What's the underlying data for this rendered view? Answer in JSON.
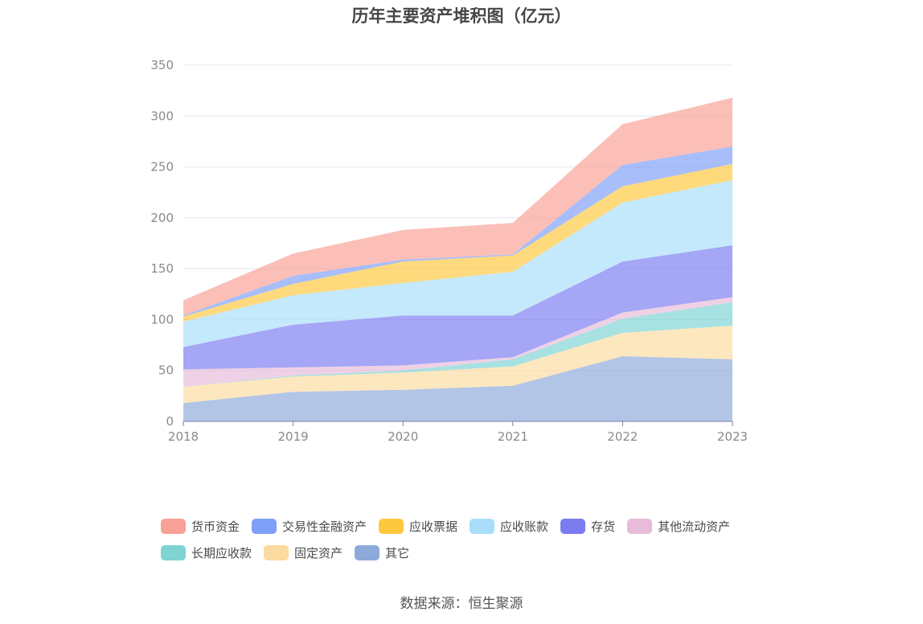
{
  "chart_data": {
    "type": "area",
    "stacked": true,
    "title": "历年主要资产堆积图（亿元）",
    "x": [
      "2018",
      "2019",
      "2020",
      "2021",
      "2022",
      "2023"
    ],
    "ylim": [
      0,
      350
    ],
    "yticks": [
      0,
      50,
      100,
      150,
      200,
      250,
      300,
      350
    ],
    "grid": true,
    "legend_position": "bottom",
    "series": [
      {
        "name": "其它",
        "color": "#8eaadb",
        "values": [
          18,
          29,
          31,
          35,
          64,
          61
        ]
      },
      {
        "name": "固定资产",
        "color": "#fcdba0",
        "values": [
          16,
          15,
          17,
          19,
          23,
          33
        ]
      },
      {
        "name": "长期应收款",
        "color": "#7fd3d3",
        "values": [
          0,
          1,
          2,
          7,
          14,
          23
        ]
      },
      {
        "name": "其他流动资产",
        "color": "#e8bbd9",
        "values": [
          17,
          8,
          5,
          2,
          6,
          5
        ]
      },
      {
        "name": "存货",
        "color": "#7b7cf0",
        "values": [
          22,
          42,
          49,
          41,
          50,
          51
        ]
      },
      {
        "name": "应收账款",
        "color": "#a9defa",
        "values": [
          25,
          29,
          32,
          43,
          58,
          64
        ]
      },
      {
        "name": "应收票据",
        "color": "#fdc840",
        "values": [
          5,
          11,
          21,
          16,
          16,
          16
        ]
      },
      {
        "name": "交易性金融资产",
        "color": "#7f9ff7",
        "values": [
          1,
          8,
          2,
          1,
          21,
          17
        ]
      },
      {
        "name": "货币资金",
        "color": "#f9a196",
        "values": [
          15,
          22,
          29,
          31,
          40,
          48
        ]
      }
    ]
  },
  "legend_items": [
    {
      "name": "货币资金",
      "color": "#f9a196"
    },
    {
      "name": "交易性金融资产",
      "color": "#7f9ff7"
    },
    {
      "name": "应收票据",
      "color": "#fdc840"
    },
    {
      "name": "应收账款",
      "color": "#a9defa"
    },
    {
      "name": "存货",
      "color": "#7b7cf0"
    },
    {
      "name": "其他流动资产",
      "color": "#e8bbd9"
    },
    {
      "name": "长期应收款",
      "color": "#7fd3d3"
    },
    {
      "name": "固定资产",
      "color": "#fcdba0"
    },
    {
      "name": "其它",
      "color": "#8eaadb"
    }
  ],
  "source": "数据来源：恒生聚源"
}
